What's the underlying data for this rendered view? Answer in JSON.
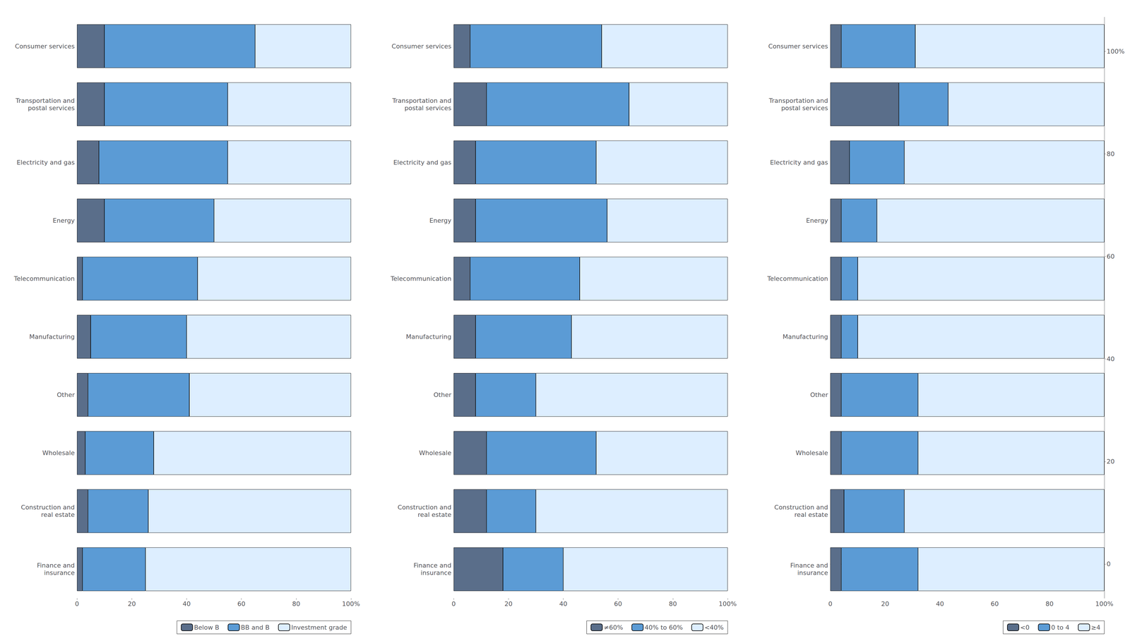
{
  "chart_data": [
    {
      "type": "bar",
      "orientation": "horizontal",
      "stacked": true,
      "grid": false,
      "legend": "lower right",
      "categories": [
        "Consumer services",
        "Transportation and\npostal services",
        "Electricity and gas",
        "Energy",
        "Telecommunication",
        "Manufacturing",
        "Other",
        "Wholesale",
        "Construction and\nreal estate",
        "Finance and\ninsurance"
      ],
      "series": [
        {
          "name": "Below B",
          "color": "#5a6e8a",
          "values": [
            10,
            10,
            8,
            10,
            2,
            5,
            4,
            3,
            4,
            2
          ]
        },
        {
          "name": "BB and B",
          "color": "#5b9bd5",
          "values": [
            55,
            45,
            47,
            40,
            42,
            35,
            37,
            25,
            22,
            23
          ]
        },
        {
          "name": "Investment grade",
          "color": "#ddeeff",
          "values": [
            35,
            45,
            45,
            50,
            56,
            60,
            59,
            72,
            74,
            75
          ]
        }
      ],
      "xlim": [
        0,
        100
      ],
      "xticks": [
        0,
        20,
        40,
        60,
        80,
        {
          "value": 100,
          "label": "100%"
        }
      ]
    },
    {
      "type": "bar",
      "orientation": "horizontal",
      "stacked": true,
      "grid": false,
      "legend": "lower right",
      "categories": [
        "Consumer services",
        "Transportation and\npostal services",
        "Electricity and gas",
        "Energy",
        "Telecommunication",
        "Manufacturing",
        "Other",
        "Wholesale",
        "Construction and\nreal estate",
        "Finance and\ninsurance"
      ],
      "series": [
        {
          "name": "≠60%",
          "color": "#5a6e8a",
          "values": [
            6,
            12,
            8,
            8,
            6,
            8,
            8,
            12,
            12,
            18
          ]
        },
        {
          "name": "40% to 60%",
          "color": "#5b9bd5",
          "values": [
            48,
            52,
            44,
            48,
            40,
            35,
            22,
            40,
            18,
            22
          ]
        },
        {
          "name": "<40%",
          "color": "#ddeeff",
          "values": [
            46,
            36,
            48,
            44,
            54,
            57,
            70,
            48,
            70,
            60
          ]
        }
      ],
      "xlim": [
        0,
        100
      ],
      "xticks": [
        0,
        20,
        40,
        60,
        80,
        {
          "value": 100,
          "label": "100%"
        }
      ]
    },
    {
      "type": "bar",
      "orientation": "horizontal",
      "stacked": true,
      "grid": false,
      "legend": "lower right",
      "categories": [
        "Consumer services",
        "Transportation and\npostal services",
        "Electricity and gas",
        "Energy",
        "Telecommunication",
        "Manufacturing",
        "Other",
        "Wholesale",
        "Construction and\nreal estate",
        "Finance and\ninsurance"
      ],
      "series": [
        {
          "name": "<0",
          "color": "#5a6e8a",
          "values": [
            4,
            25,
            7,
            4,
            4,
            4,
            4,
            4,
            5,
            4
          ]
        },
        {
          "name": "0 to 4",
          "color": "#5b9bd5",
          "values": [
            27,
            18,
            20,
            13,
            6,
            6,
            28,
            28,
            22,
            28
          ]
        },
        {
          "name": "≥4",
          "color": "#ddeeff",
          "values": [
            69,
            57,
            73,
            83,
            90,
            90,
            68,
            68,
            73,
            68
          ]
        }
      ],
      "xlim": [
        0,
        100
      ],
      "xticks": [
        0,
        20,
        40,
        60,
        80,
        {
          "value": 100,
          "label": "100%"
        }
      ],
      "y2lim": [
        -6.666666666666667,
        106.66666666666667
      ],
      "y2ticks": [
        0,
        20,
        40,
        60,
        80,
        {
          "value": 100,
          "label": "100%"
        }
      ]
    }
  ]
}
